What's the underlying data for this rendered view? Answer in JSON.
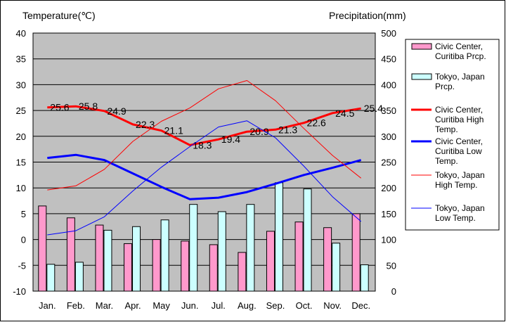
{
  "chart_data": {
    "type": "bar+line",
    "months": [
      "Jan.",
      "Feb.",
      "Mar.",
      "Apr.",
      "May",
      "Jun.",
      "Jul.",
      "Aug.",
      "Sep.",
      "Oct.",
      "Nov.",
      "Dec."
    ],
    "y_left": {
      "label": "Temperature(℃)",
      "min": -10,
      "max": 40,
      "ticks": [
        -10,
        -5,
        0,
        5,
        10,
        15,
        20,
        25,
        30,
        35,
        40
      ]
    },
    "y_right": {
      "label": "Precipitation(mm)",
      "min": 0,
      "max": 500,
      "ticks": [
        0,
        50,
        100,
        150,
        200,
        250,
        300,
        350,
        400,
        450,
        500
      ]
    },
    "grid": true,
    "legend_position": "right",
    "series": [
      {
        "name": "Civic Center, Curitiba Prcp.",
        "kind": "bar",
        "axis": "right",
        "color": "#FF99CC",
        "values": [
          165,
          142,
          128,
          92,
          100,
          97,
          90,
          75,
          116,
          134,
          123,
          150
        ]
      },
      {
        "name": "Tokyo, Japan Prcp.",
        "kind": "bar",
        "axis": "right",
        "color": "#CCFFFF",
        "values": [
          52,
          56,
          118,
          125,
          138,
          168,
          154,
          168,
          210,
          198,
          93,
          51
        ]
      },
      {
        "name": "Civic Center, Curitiba High Temp.",
        "kind": "line",
        "axis": "left",
        "color": "#FF0000",
        "thick": true,
        "values": [
          25.6,
          25.8,
          24.9,
          22.3,
          21.1,
          18.3,
          19.4,
          20.9,
          21.3,
          22.6,
          24.5,
          25.4
        ],
        "labels": [
          "25.6",
          "25.8",
          "24.9",
          "22.3",
          "21.1",
          "18.3",
          "19.4",
          "20.9",
          "21.3",
          "22.6",
          "24.5",
          "25.4"
        ]
      },
      {
        "name": "Civic Center, Curitiba Low Temp.",
        "kind": "line",
        "axis": "left",
        "color": "#0000FF",
        "thick": true,
        "values": [
          15.8,
          16.4,
          15.4,
          12.8,
          10.2,
          7.8,
          8.1,
          9.2,
          10.8,
          12.5,
          13.9,
          15.4
        ]
      },
      {
        "name": "Tokyo, Japan High Temp.",
        "kind": "line",
        "axis": "left",
        "color": "#FF0000",
        "thick": false,
        "values": [
          9.6,
          10.4,
          13.6,
          19.0,
          22.9,
          25.5,
          29.2,
          30.8,
          26.9,
          21.5,
          16.3,
          11.9
        ]
      },
      {
        "name": "Tokyo, Japan Low Temp.",
        "kind": "line",
        "axis": "left",
        "color": "#0000FF",
        "thick": false,
        "values": [
          0.9,
          1.7,
          4.4,
          9.4,
          14.0,
          18.0,
          21.8,
          23.0,
          19.7,
          14.2,
          8.3,
          3.5
        ]
      }
    ],
    "legend": [
      {
        "kind": "bar",
        "color": "#FF99CC",
        "lines": [
          "Civic Center,",
          "Curitiba Prcp."
        ]
      },
      {
        "kind": "bar",
        "color": "#CCFFFF",
        "lines": [
          "Tokyo, Japan",
          "Prcp."
        ]
      },
      {
        "kind": "line",
        "color": "#FF0000",
        "thick": true,
        "lines": [
          "Civic Center,",
          "Curitiba High",
          "Temp."
        ]
      },
      {
        "kind": "line",
        "color": "#0000FF",
        "thick": true,
        "lines": [
          "Civic Center,",
          "Curitiba Low",
          "Temp."
        ]
      },
      {
        "kind": "line",
        "color": "#FF0000",
        "thick": false,
        "lines": [
          "Tokyo, Japan",
          "High Temp."
        ]
      },
      {
        "kind": "line",
        "color": "#0000FF",
        "thick": false,
        "lines": [
          "Tokyo, Japan",
          "Low Temp."
        ]
      }
    ]
  }
}
